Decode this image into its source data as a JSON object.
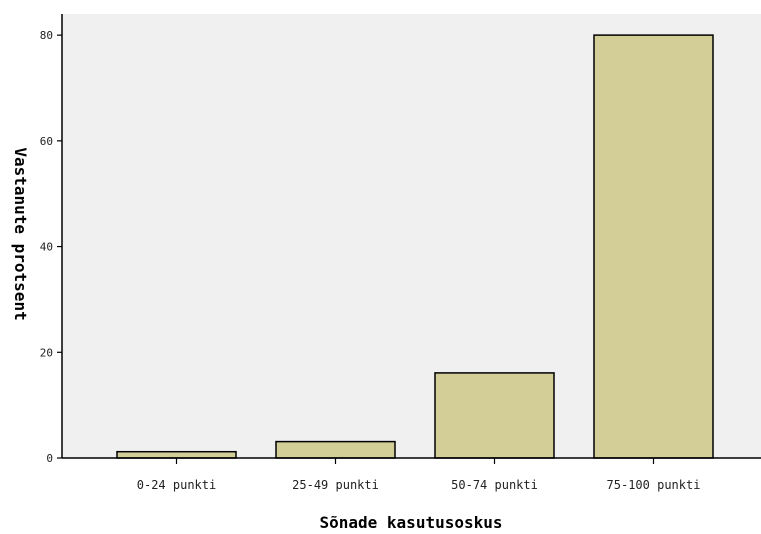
{
  "chart_data": {
    "type": "bar",
    "categories": [
      "0-24 punkti",
      "25-49 punkti",
      "50-74 punkti",
      "75-100 punkti"
    ],
    "values": [
      1.2,
      3.1,
      16.1,
      80.0
    ],
    "title": "",
    "xlabel": "Sõnade kasutusoskus",
    "ylabel": "Vastanute protsent",
    "ylim": [
      0,
      84
    ],
    "yticks": [
      0,
      20,
      40,
      60,
      80
    ],
    "grid": false,
    "legend": "none",
    "colors": {
      "plot_background": "#f0f0f0",
      "bar_fill": "#d3cd97",
      "bar_stroke": "#000000",
      "axis": "#000000"
    }
  }
}
